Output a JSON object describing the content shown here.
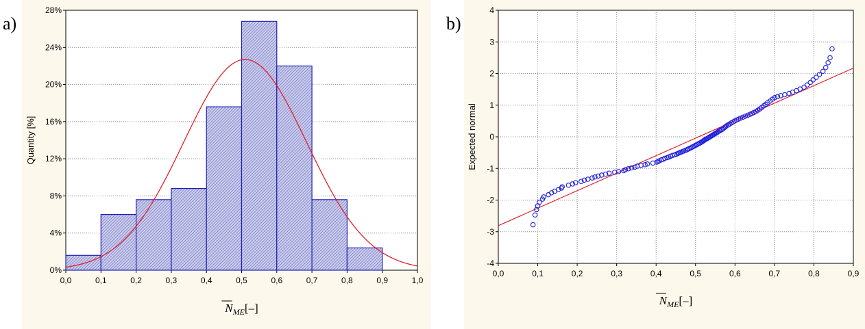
{
  "panel_labels": {
    "a": "a)",
    "b": "b)"
  },
  "chart_data": [
    {
      "type": "bar",
      "subtype": "histogram",
      "ylabel": "Quantity [%]",
      "xlabel": {
        "base": "N",
        "sub": "ME",
        "suffix": "[–]",
        "overline": true
      },
      "xlim": [
        0,
        1
      ],
      "ylim": [
        0,
        28
      ],
      "x_ticks": [
        "0,0",
        "0,1",
        "0,2",
        "0,3",
        "0,4",
        "0,5",
        "0,6",
        "0,7",
        "0,8",
        "0,9",
        "1,0"
      ],
      "y_ticks": [
        "0%",
        "4%",
        "8%",
        "12%",
        "16%",
        "20%",
        "24%",
        "28%"
      ],
      "bins": [
        [
          0.0,
          0.1
        ],
        [
          0.1,
          0.2
        ],
        [
          0.2,
          0.3
        ],
        [
          0.3,
          0.4
        ],
        [
          0.4,
          0.5
        ],
        [
          0.5,
          0.6
        ],
        [
          0.6,
          0.7
        ],
        [
          0.7,
          0.8
        ],
        [
          0.8,
          0.9
        ]
      ],
      "values": [
        1.6,
        6.0,
        7.6,
        8.8,
        17.6,
        26.8,
        22.0,
        7.6,
        2.4
      ],
      "fit": {
        "type": "normal",
        "mean": 0.51,
        "sd": 0.175,
        "peak": 22.7
      },
      "grid": "horizontal dotted",
      "colors": {
        "bar_edge": "#1f1fb8",
        "bar_fill": "#a7a9d9",
        "curve": "#e0202a"
      }
    },
    {
      "type": "scatter",
      "subtype": "normal probability plot",
      "ylabel": "Expected normal",
      "xlabel": {
        "base": "N",
        "sub": "ME",
        "suffix": "[–]",
        "overline": true
      },
      "xlim": [
        0,
        0.9
      ],
      "ylim": [
        -4,
        4
      ],
      "x_ticks": [
        "0,0",
        "0,1",
        "0,2",
        "0,3",
        "0,4",
        "0,5",
        "0,6",
        "0,7",
        "0,8",
        "0,9"
      ],
      "y_ticks": [
        "-4",
        "-3",
        "-2",
        "-1",
        "0",
        "1",
        "2",
        "3",
        "4"
      ],
      "points": [
        [
          0.088,
          -2.78
        ],
        [
          0.093,
          -2.47
        ],
        [
          0.097,
          -2.3
        ],
        [
          0.1,
          -2.18
        ],
        [
          0.104,
          -2.07
        ],
        [
          0.112,
          -1.97
        ],
        [
          0.115,
          -1.9
        ],
        [
          0.127,
          -1.83
        ],
        [
          0.135,
          -1.77
        ],
        [
          0.143,
          -1.72
        ],
        [
          0.152,
          -1.67
        ],
        [
          0.16,
          -1.62
        ],
        [
          0.162,
          -1.58
        ],
        [
          0.178,
          -1.53
        ],
        [
          0.188,
          -1.49
        ],
        [
          0.196,
          -1.45
        ],
        [
          0.21,
          -1.41
        ],
        [
          0.218,
          -1.37
        ],
        [
          0.227,
          -1.34
        ],
        [
          0.238,
          -1.3
        ],
        [
          0.245,
          -1.27
        ],
        [
          0.253,
          -1.24
        ],
        [
          0.262,
          -1.21
        ],
        [
          0.272,
          -1.18
        ],
        [
          0.281,
          -1.15
        ],
        [
          0.295,
          -1.12
        ],
        [
          0.305,
          -1.1
        ],
        [
          0.318,
          -1.07
        ],
        [
          0.322,
          -1.04
        ],
        [
          0.33,
          -1.01
        ],
        [
          0.338,
          -0.98
        ],
        [
          0.346,
          -0.96
        ],
        [
          0.352,
          -0.93
        ],
        [
          0.362,
          -0.9
        ],
        [
          0.372,
          -0.88
        ],
        [
          0.378,
          -0.86
        ],
        [
          0.392,
          -0.83
        ],
        [
          0.402,
          -0.8
        ],
        [
          0.405,
          -0.78
        ],
        [
          0.408,
          -0.76
        ],
        [
          0.413,
          -0.73
        ],
        [
          0.418,
          -0.71
        ],
        [
          0.422,
          -0.68
        ],
        [
          0.428,
          -0.66
        ],
        [
          0.432,
          -0.64
        ],
        [
          0.436,
          -0.62
        ],
        [
          0.441,
          -0.59
        ],
        [
          0.447,
          -0.57
        ],
        [
          0.451,
          -0.55
        ],
        [
          0.455,
          -0.53
        ],
        [
          0.458,
          -0.51
        ],
        [
          0.462,
          -0.49
        ],
        [
          0.466,
          -0.47
        ],
        [
          0.47,
          -0.45
        ],
        [
          0.474,
          -0.43
        ],
        [
          0.478,
          -0.41
        ],
        [
          0.481,
          -0.39
        ],
        [
          0.484,
          -0.37
        ],
        [
          0.488,
          -0.35
        ],
        [
          0.491,
          -0.33
        ],
        [
          0.494,
          -0.31
        ],
        [
          0.497,
          -0.29
        ],
        [
          0.5,
          -0.27
        ],
        [
          0.503,
          -0.25
        ],
        [
          0.506,
          -0.23
        ],
        [
          0.509,
          -0.21
        ],
        [
          0.512,
          -0.19
        ],
        [
          0.515,
          -0.17
        ],
        [
          0.517,
          -0.15
        ],
        [
          0.52,
          -0.13
        ],
        [
          0.522,
          -0.11
        ],
        [
          0.524,
          -0.09
        ],
        [
          0.527,
          -0.07
        ],
        [
          0.53,
          -0.05
        ],
        [
          0.533,
          -0.03
        ],
        [
          0.535,
          -0.01
        ],
        [
          0.538,
          0.01
        ],
        [
          0.541,
          0.03
        ],
        [
          0.543,
          0.05
        ],
        [
          0.546,
          0.07
        ],
        [
          0.548,
          0.09
        ],
        [
          0.551,
          0.11
        ],
        [
          0.553,
          0.13
        ],
        [
          0.556,
          0.15
        ],
        [
          0.558,
          0.17
        ],
        [
          0.561,
          0.19
        ],
        [
          0.564,
          0.21
        ],
        [
          0.567,
          0.23
        ],
        [
          0.57,
          0.26
        ],
        [
          0.573,
          0.29
        ],
        [
          0.576,
          0.32
        ],
        [
          0.579,
          0.35
        ],
        [
          0.583,
          0.38
        ],
        [
          0.587,
          0.41
        ],
        [
          0.591,
          0.44
        ],
        [
          0.595,
          0.47
        ],
        [
          0.599,
          0.5
        ],
        [
          0.604,
          0.53
        ],
        [
          0.609,
          0.56
        ],
        [
          0.614,
          0.59
        ],
        [
          0.62,
          0.62
        ],
        [
          0.626,
          0.65
        ],
        [
          0.632,
          0.68
        ],
        [
          0.638,
          0.71
        ],
        [
          0.643,
          0.74
        ],
        [
          0.648,
          0.77
        ],
        [
          0.653,
          0.8
        ],
        [
          0.658,
          0.84
        ],
        [
          0.663,
          0.88
        ],
        [
          0.668,
          0.93
        ],
        [
          0.673,
          0.98
        ],
        [
          0.678,
          1.03
        ],
        [
          0.683,
          1.08
        ],
        [
          0.689,
          1.13
        ],
        [
          0.695,
          1.19
        ],
        [
          0.701,
          1.24
        ],
        [
          0.708,
          1.27
        ],
        [
          0.716,
          1.3
        ],
        [
          0.726,
          1.33
        ],
        [
          0.737,
          1.37
        ],
        [
          0.746,
          1.41
        ],
        [
          0.756,
          1.46
        ],
        [
          0.765,
          1.51
        ],
        [
          0.775,
          1.57
        ],
        [
          0.783,
          1.64
        ],
        [
          0.791,
          1.72
        ],
        [
          0.798,
          1.8
        ],
        [
          0.806,
          1.88
        ],
        [
          0.814,
          1.97
        ],
        [
          0.823,
          2.07
        ],
        [
          0.83,
          2.19
        ],
        [
          0.836,
          2.34
        ],
        [
          0.841,
          2.5
        ],
        [
          0.846,
          2.78
        ]
      ],
      "fit_line": {
        "x": [
          0.0,
          0.9
        ],
        "y": [
          -2.81,
          2.17
        ]
      },
      "grid": "both dotted",
      "colors": {
        "marker": "#1f1fdc",
        "line": "#e0202a"
      }
    }
  ]
}
